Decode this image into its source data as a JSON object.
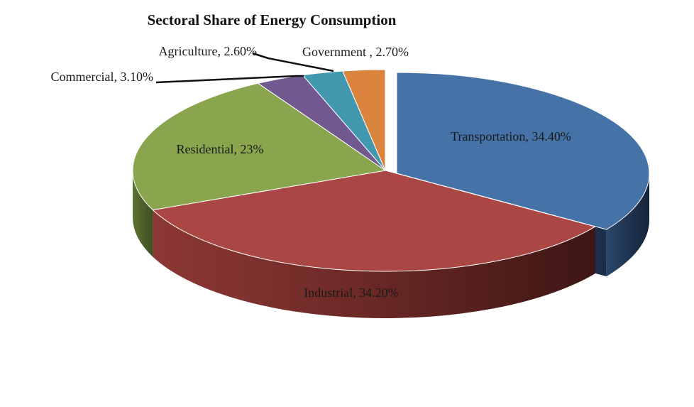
{
  "chart_data": {
    "type": "pie",
    "title": "Sectoral Share of Energy Consumption",
    "slices": [
      {
        "name": "Transportation",
        "value": 34.4,
        "label": "Transportation, 34.40%",
        "color": "#4572A7"
      },
      {
        "name": "Industrial",
        "value": 34.2,
        "label": "Industrial, 34.20%",
        "color": "#AA4643"
      },
      {
        "name": "Residential",
        "value": 23.0,
        "label": "Residential, 23%",
        "color": "#89A54E"
      },
      {
        "name": "Commercial",
        "value": 3.1,
        "label": "Commercial, 3.10%",
        "color": "#71588F"
      },
      {
        "name": "Agriculture",
        "value": 2.6,
        "label": "Agriculture, 2.60%",
        "color": "#4198AF"
      },
      {
        "name": "Government",
        "value": 2.7,
        "label": "Government , 2.70%",
        "color": "#DB843D"
      }
    ],
    "style": "3d-exploded-pie",
    "legend": "none"
  }
}
